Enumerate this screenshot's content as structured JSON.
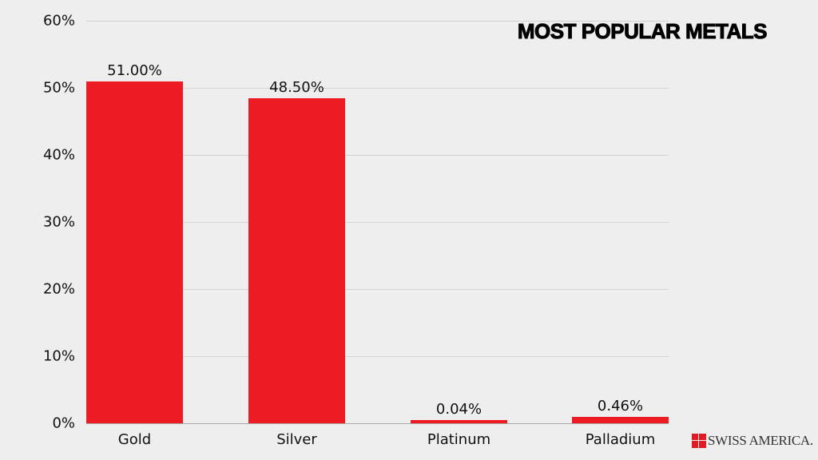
{
  "chart_data": {
    "type": "bar",
    "title": "MOST POPULAR METALS",
    "categories": [
      "Gold",
      "Silver",
      "Platinum",
      "Palladium"
    ],
    "values": [
      51.0,
      48.5,
      0.04,
      0.46
    ],
    "value_labels": [
      "51.00%",
      "48.50%",
      "0.04%",
      "0.46%"
    ],
    "xlabel": "",
    "ylabel": "",
    "ylim": [
      0,
      60
    ],
    "yticks": [
      "0%",
      "10%",
      "20%",
      "30%",
      "40%",
      "50%",
      "60%"
    ],
    "grid": true,
    "legend": "none",
    "bar_color": "#ed1c24"
  },
  "branding": {
    "logo_text": "SWISS AMERICA."
  }
}
